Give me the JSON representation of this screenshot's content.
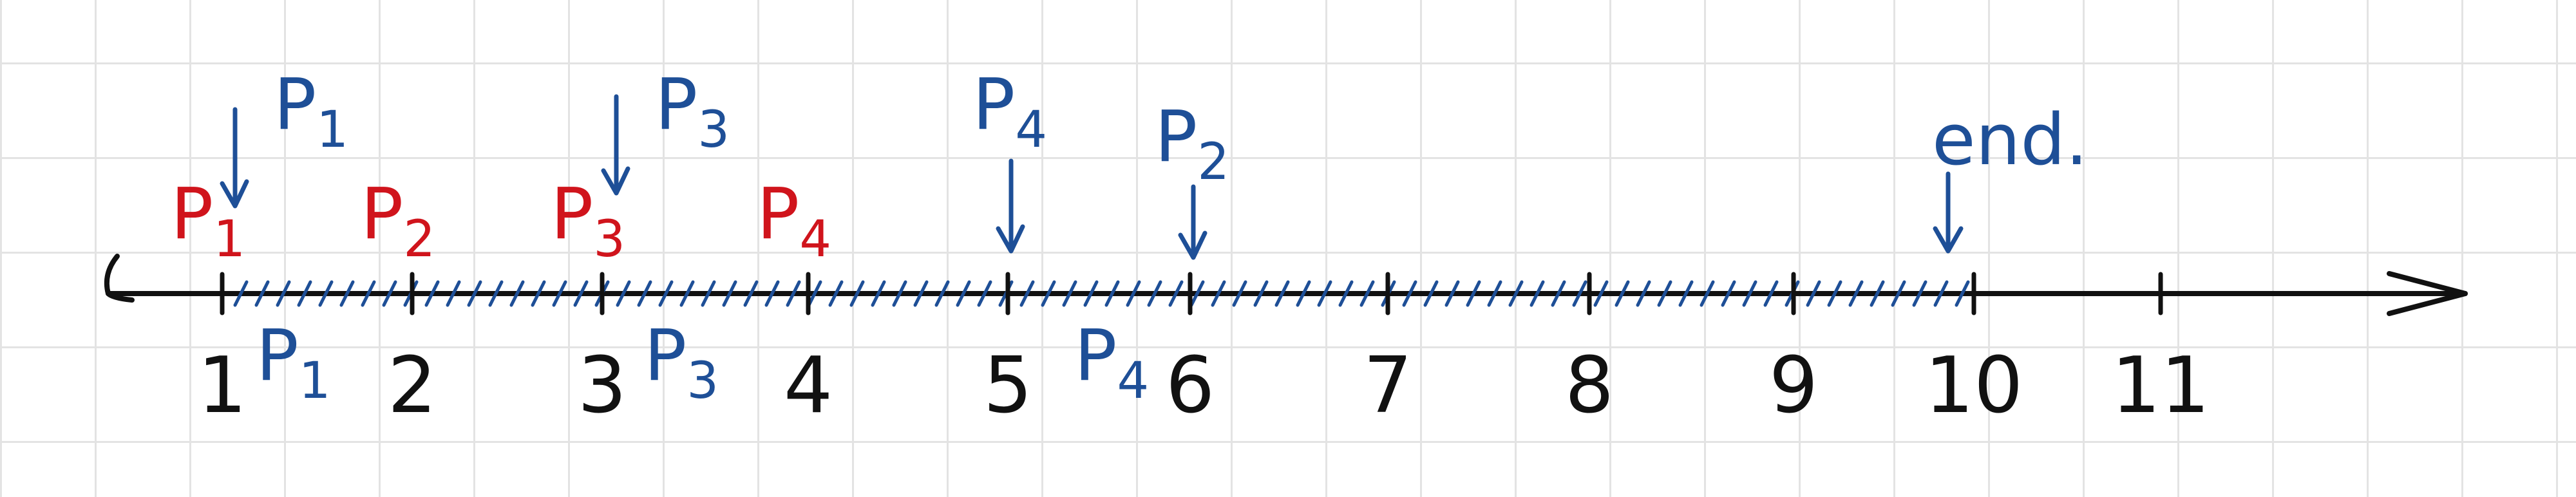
{
  "timeline": {
    "ticks": [
      "1",
      "2",
      "3",
      "4",
      "5",
      "6",
      "7",
      "8",
      "9",
      "10",
      "11"
    ],
    "arrival_labels": [
      {
        "letter": "P",
        "sub": "1",
        "at": 1
      },
      {
        "letter": "P",
        "sub": "2",
        "at": 2
      },
      {
        "letter": "P",
        "sub": "3",
        "at": 3
      },
      {
        "letter": "P",
        "sub": "4",
        "at": 4
      }
    ],
    "start_markers": [
      {
        "letter": "P",
        "sub": "1",
        "at": 1
      },
      {
        "letter": "P",
        "sub": "3",
        "at": 3
      },
      {
        "letter": "P",
        "sub": "4",
        "at": 5
      },
      {
        "letter": "P",
        "sub": "2",
        "at": 6
      }
    ],
    "end_marker": {
      "label": "end.",
      "at": 10
    },
    "completion_labels": [
      {
        "letter": "P",
        "sub": "1",
        "at": 1.5
      },
      {
        "letter": "P",
        "sub": "3",
        "at": 3.5
      },
      {
        "letter": "P",
        "sub": "4",
        "at": 5.7
      }
    ],
    "busy_interval": [
      1,
      10
    ],
    "colors": {
      "arrival": "#d0141c",
      "marker": "#1e4f97",
      "axis": "#111111"
    }
  }
}
